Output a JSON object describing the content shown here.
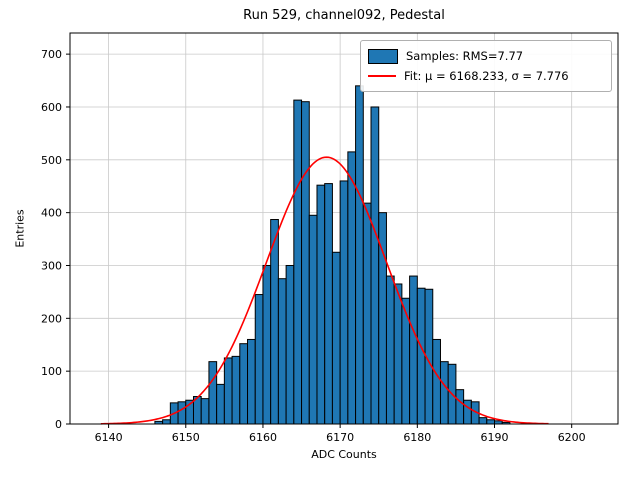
{
  "chart_data": {
    "type": "bar",
    "title": "Run 529, channel092, Pedestal",
    "xlabel": "ADC Counts",
    "ylabel": "Entries",
    "xlim": [
      6135,
      6206
    ],
    "ylim": [
      0,
      740
    ],
    "xticks": [
      6140,
      6150,
      6160,
      6170,
      6180,
      6190,
      6200
    ],
    "yticks": [
      0,
      100,
      200,
      300,
      400,
      500,
      600,
      700
    ],
    "grid": true,
    "bin_width": 1,
    "bins_start": 6146,
    "values": [
      5,
      8,
      40,
      42,
      45,
      52,
      48,
      118,
      75,
      125,
      128,
      152,
      160,
      245,
      300,
      387,
      275,
      300,
      613,
      610,
      395,
      452,
      455,
      325,
      460,
      515,
      640,
      418,
      600,
      400,
      280,
      265,
      238,
      280,
      257,
      255,
      160,
      118,
      113,
      65,
      45,
      42,
      12,
      8,
      6,
      3
    ],
    "fit": {
      "mu": 6168.233,
      "sigma": 7.776,
      "amplitude": 505,
      "x_range": [
        6139,
        6197
      ]
    },
    "legend": [
      {
        "label": "Samples: RMS=7.77",
        "type": "patch",
        "color": "#1f77b4"
      },
      {
        "label": "Fit: μ = 6168.233, σ = 7.776",
        "type": "line",
        "color": "#ff0000"
      }
    ],
    "colors": {
      "bar_fill": "#1f77b4",
      "bar_edge": "#000000",
      "fit_line": "#ff0000",
      "grid": "#c9c9c9",
      "frame": "#000000",
      "background": "#ffffff"
    }
  }
}
